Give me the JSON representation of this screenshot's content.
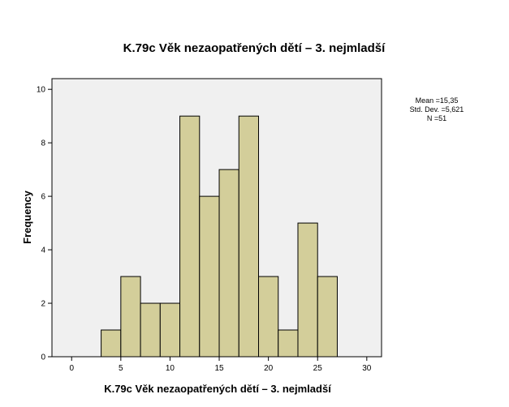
{
  "chart_data": {
    "type": "bar",
    "title": "K.79c Věk nezaopatřených dětí – 3. nejmladší",
    "xlabel": "K.79c Věk nezaopatřených dětí – 3. nejmladší",
    "ylabel": "Frequency",
    "xlim": [
      -2,
      31.5
    ],
    "ylim": [
      0,
      10.4
    ],
    "x_ticks": [
      0,
      5,
      10,
      15,
      20,
      25,
      30
    ],
    "y_ticks": [
      0,
      2,
      4,
      6,
      8,
      10
    ],
    "bins": [
      {
        "from": 3,
        "to": 5,
        "count": 1
      },
      {
        "from": 5,
        "to": 7,
        "count": 3
      },
      {
        "from": 7,
        "to": 9,
        "count": 2
      },
      {
        "from": 9,
        "to": 11,
        "count": 2
      },
      {
        "from": 11,
        "to": 13,
        "count": 9
      },
      {
        "from": 13,
        "to": 15,
        "count": 6
      },
      {
        "from": 15,
        "to": 17,
        "count": 7
      },
      {
        "from": 17,
        "to": 19,
        "count": 9
      },
      {
        "from": 19,
        "to": 21,
        "count": 3
      },
      {
        "from": 21,
        "to": 23,
        "count": 1
      },
      {
        "from": 23,
        "to": 25,
        "count": 5
      },
      {
        "from": 25,
        "to": 27,
        "count": 3
      }
    ],
    "stats": [
      "Mean =15,35",
      "Std. Dev. =5,621",
      "N =51"
    ],
    "colors": {
      "bar_fill": "#d3ce9a",
      "bar_stroke": "#000000",
      "plot_bg": "#f0f0f0"
    }
  }
}
